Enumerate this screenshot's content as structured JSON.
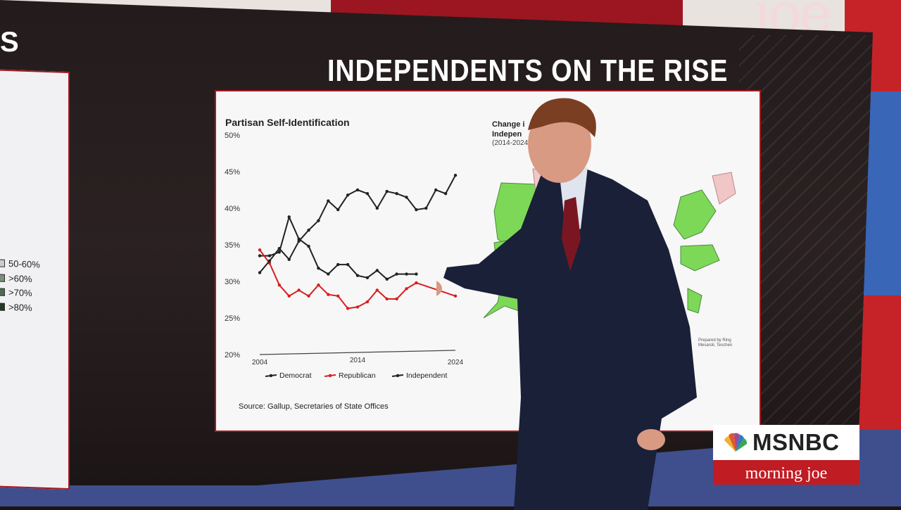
{
  "scene": {
    "headline": "INDEPENDENTS ON THE RISE",
    "left_panel_fragment": "S",
    "studio_backdrop_text": "joe"
  },
  "left_card": {
    "legend": [
      {
        "label": "50-60%",
        "color": "#c9cbd3"
      },
      {
        "label": ">60%",
        "color": "#7b8f7d"
      },
      {
        "label": ">70%",
        "color": "#4e6b52"
      },
      {
        "label": ">80%",
        "color": "#24382a"
      }
    ]
  },
  "chart_card": {
    "title": "Partisan Self-Identification",
    "source": "Source: Gallup, Secretaries of State Offices"
  },
  "map_panel": {
    "title_line1": "Change i",
    "title_line2": "Indepen",
    "subtitle": "(2014-2024",
    "credit_line1": "Prepared by Ring",
    "credit_line2": "Mesaroli, Teschen",
    "colors": {
      "increase": "#7dd858",
      "decrease": "#f0c6c6",
      "no_data": "#b9bccb"
    }
  },
  "broadcast": {
    "network": "MSNBC",
    "show": "morning joe",
    "brand_red": "#c01c23"
  },
  "chart_data": {
    "type": "line",
    "title": "Partisan Self-Identification",
    "x_tick_labels": [
      "2004",
      "2014",
      "2024"
    ],
    "y_tick_labels": [
      "20%",
      "25%",
      "30%",
      "35%",
      "40%",
      "45%",
      "50%"
    ],
    "ylim": [
      20,
      50
    ],
    "xlim": [
      2004,
      2024
    ],
    "grid": true,
    "legend_position": "bottom",
    "x": [
      2004,
      2005,
      2006,
      2007,
      2008,
      2009,
      2010,
      2011,
      2012,
      2013,
      2014,
      2015,
      2016,
      2017,
      2018,
      2019,
      2020,
      2021,
      2022,
      2023,
      2024
    ],
    "series": [
      {
        "name": "Democrat",
        "color": "#222222",
        "values": [
          33.5,
          33.5,
          34.0,
          38.8,
          35.8,
          34.8,
          31.8,
          31.0,
          32.3,
          32.3,
          30.8,
          30.5,
          31.5,
          30.3,
          31.0,
          31.0,
          31.0,
          null,
          null,
          null,
          null
        ]
      },
      {
        "name": "Republican",
        "color": "#d81e1e",
        "values": [
          34.3,
          32.5,
          29.5,
          28.0,
          28.8,
          28.0,
          29.5,
          28.2,
          28.0,
          26.3,
          26.5,
          27.2,
          28.8,
          27.6,
          27.6,
          29.0,
          29.8,
          null,
          null,
          null,
          28.0
        ]
      },
      {
        "name": "Independent",
        "color": "#222222",
        "values": [
          31.2,
          32.8,
          34.5,
          33.0,
          35.5,
          37.0,
          38.3,
          41.0,
          39.8,
          41.8,
          42.5,
          42.0,
          40.0,
          42.3,
          42.0,
          41.5,
          39.8,
          40.0,
          42.5,
          42.0,
          44.5
        ]
      }
    ]
  }
}
